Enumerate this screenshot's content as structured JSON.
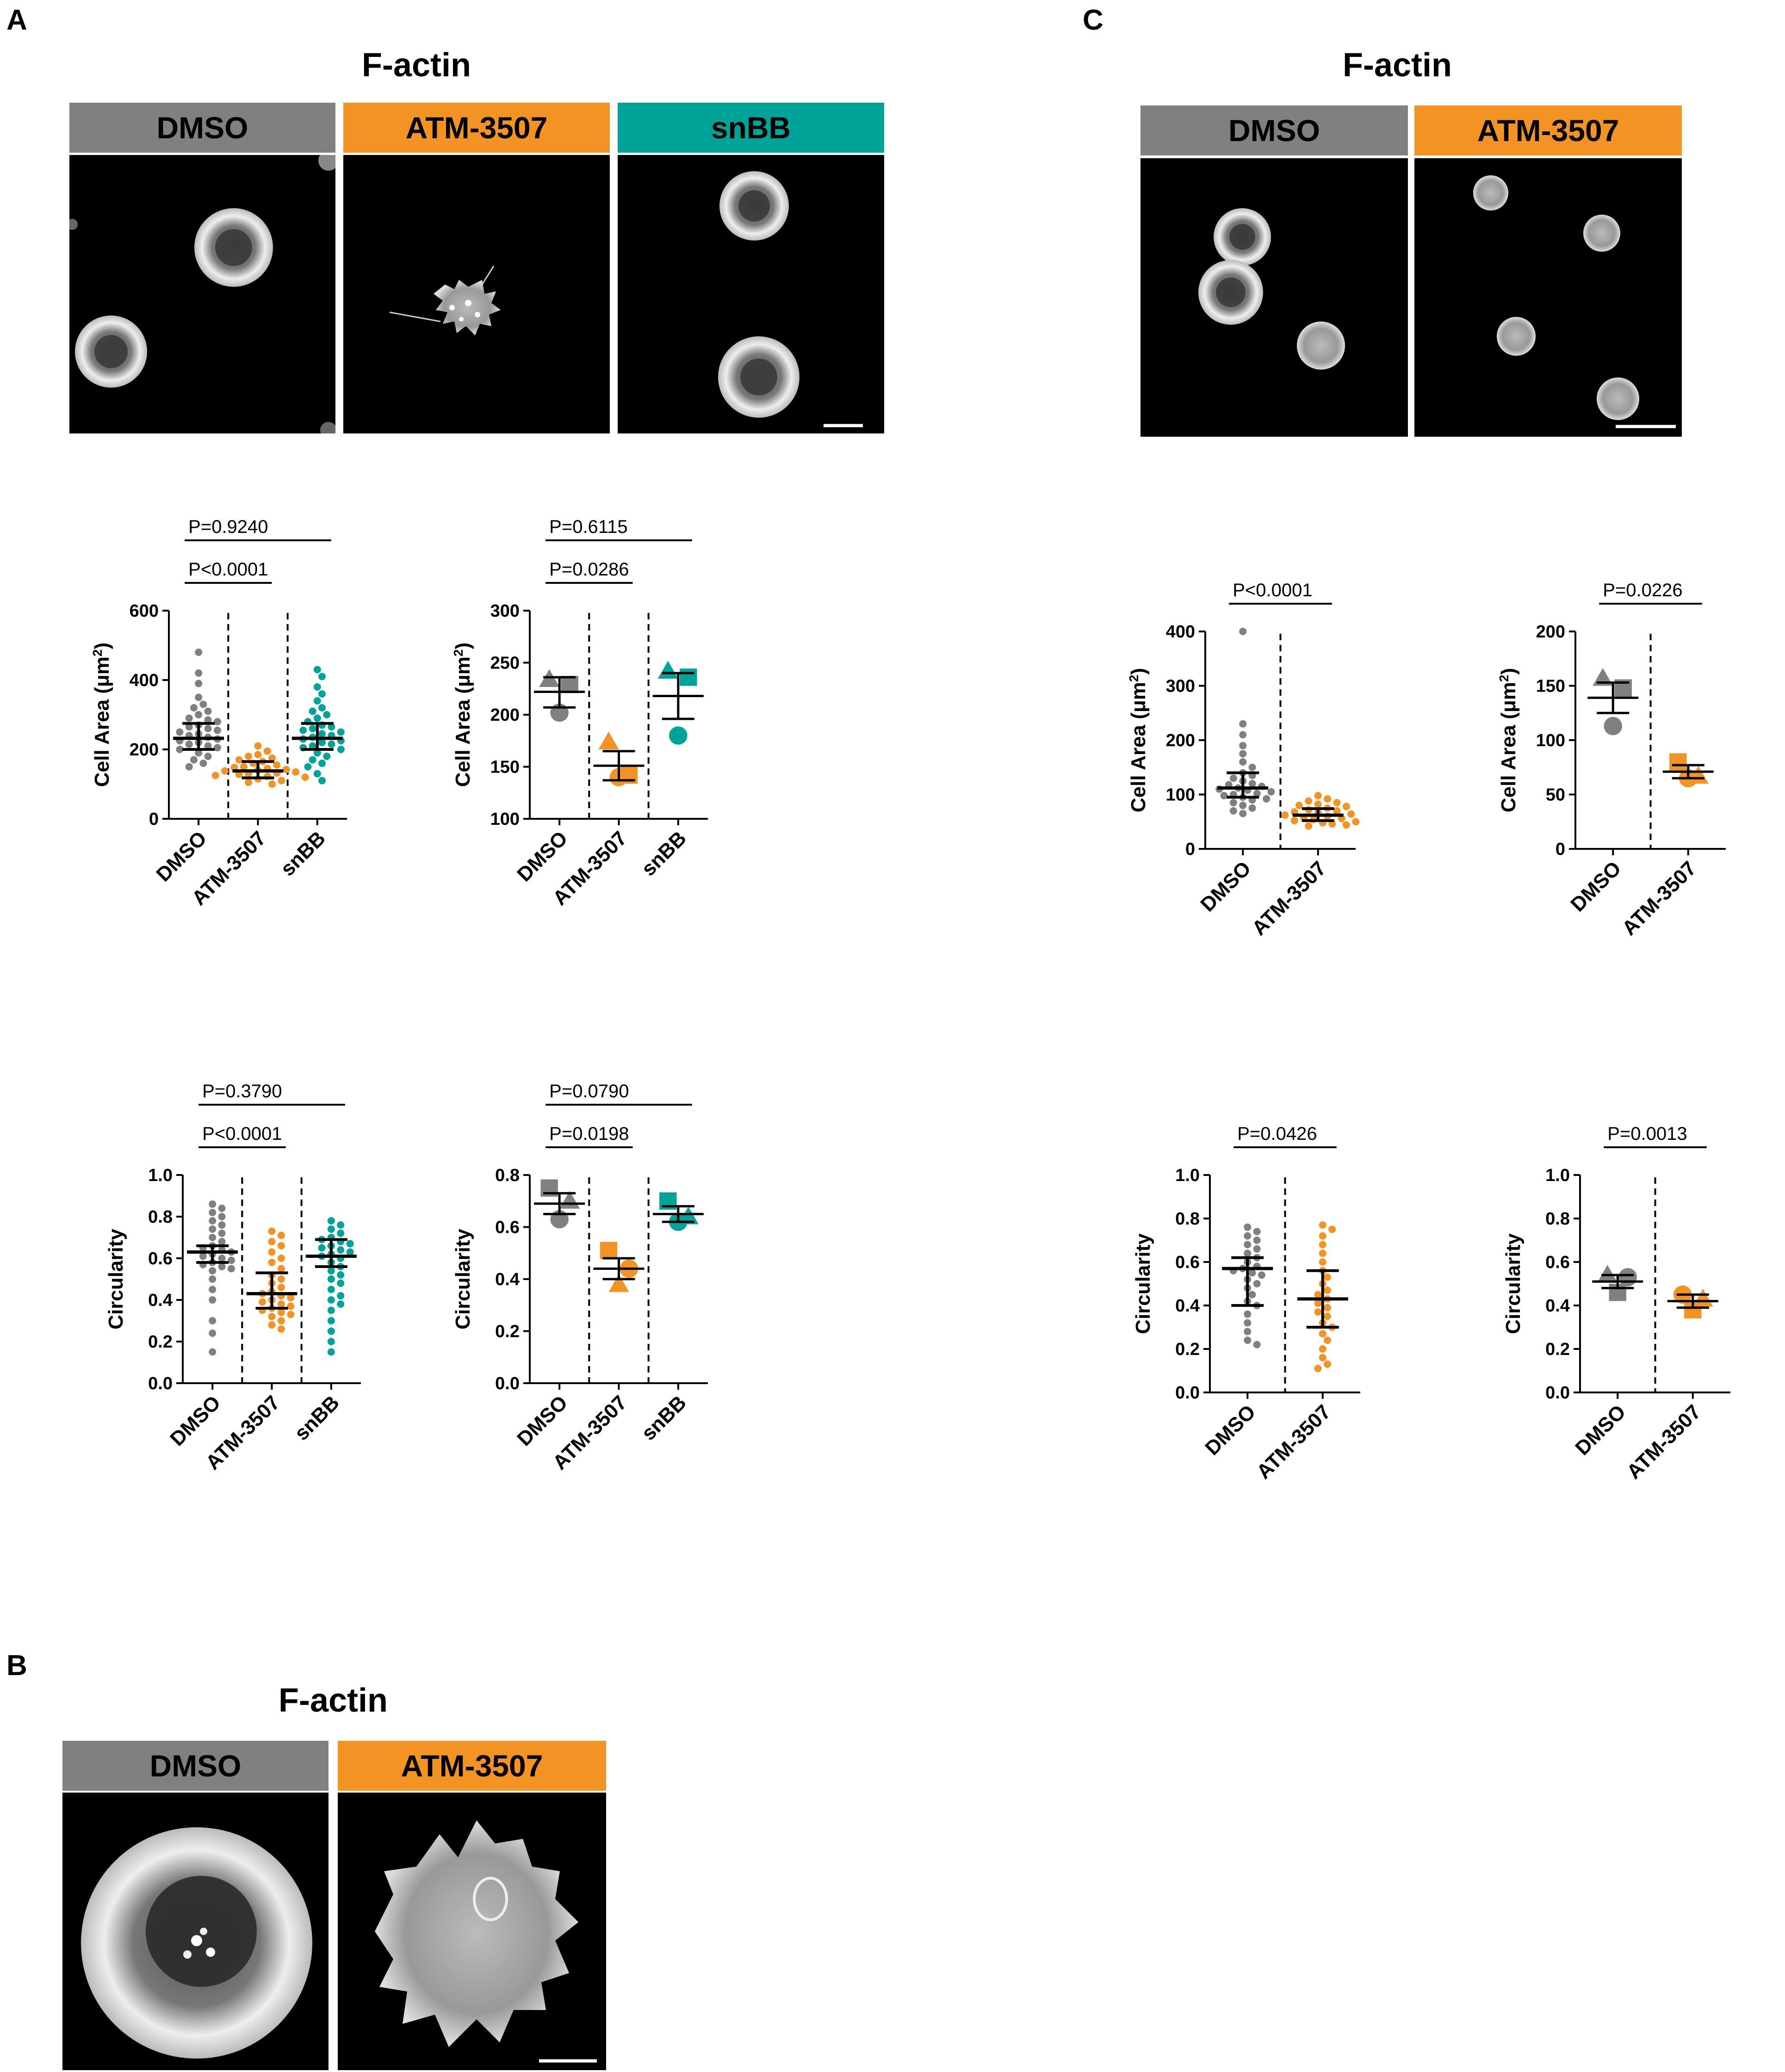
{
  "colors": {
    "dmso": "#808080",
    "atm": "#f39323",
    "snbb": "#00a398"
  },
  "panels": {
    "A": {
      "letter": "A",
      "title": "F-actin",
      "headers": [
        "DMSO",
        "ATM-3507",
        "snBB"
      ]
    },
    "B": {
      "letter": "B",
      "title": "F-actin",
      "headers": [
        "DMSO",
        "ATM-3507"
      ]
    },
    "C": {
      "letter": "C",
      "title": "F-actin",
      "headers": [
        "DMSO",
        "ATM-3507"
      ]
    }
  },
  "chart_data": [
    {
      "id": "A-area-cells",
      "type": "scatter",
      "ylabel": "Cell Area (μm2)",
      "ylim": [
        0,
        600
      ],
      "yticks": [
        0,
        200,
        400,
        600
      ],
      "categories": [
        "DMSO",
        "ATM-3507",
        "snBB"
      ],
      "comparisons": [
        {
          "label": "P=0.9240",
          "from": 0,
          "to": 2
        },
        {
          "label": "P<0.0001",
          "from": 0,
          "to": 1
        }
      ],
      "groups": [
        {
          "values": [
            480,
            420,
            390,
            350,
            330,
            320,
            310,
            300,
            290,
            285,
            280,
            270,
            265,
            260,
            255,
            250,
            245,
            240,
            235,
            230,
            225,
            220,
            215,
            210,
            205,
            200,
            190,
            180,
            170,
            160,
            150
          ],
          "median": 232,
          "q1": 200,
          "q3": 275
        },
        {
          "values": [
            210,
            195,
            185,
            180,
            175,
            170,
            165,
            160,
            155,
            150,
            148,
            145,
            142,
            140,
            138,
            135,
            132,
            130,
            128,
            125,
            122,
            120,
            115,
            110,
            105,
            100
          ],
          "median": 138,
          "q1": 118,
          "q3": 165
        },
        {
          "values": [
            430,
            410,
            380,
            360,
            340,
            320,
            310,
            300,
            290,
            280,
            270,
            265,
            260,
            255,
            250,
            245,
            240,
            235,
            230,
            225,
            220,
            215,
            210,
            205,
            200,
            190,
            180,
            170,
            160,
            150,
            130,
            110
          ],
          "median": 232,
          "q1": 200,
          "q3": 275
        }
      ]
    },
    {
      "id": "A-area-means",
      "type": "scatter",
      "ylabel": "Cell Area (μm2)",
      "ylim": [
        100,
        300
      ],
      "yticks": [
        100,
        150,
        200,
        250,
        300
      ],
      "categories": [
        "DMSO",
        "ATM-3507",
        "snBB"
      ],
      "comparisons": [
        {
          "label": "P=0.6115",
          "from": 0,
          "to": 2
        },
        {
          "label": "P=0.0286",
          "from": 0,
          "to": 1
        }
      ],
      "groups": [
        {
          "points": [
            {
              "shape": "triangle",
              "value": 234
            },
            {
              "shape": "square",
              "value": 229
            },
            {
              "shape": "circle",
              "value": 202
            }
          ],
          "mean": 222,
          "lower": 207,
          "upper": 236
        },
        {
          "points": [
            {
              "shape": "triangle",
              "value": 174
            },
            {
              "shape": "square",
              "value": 142
            },
            {
              "shape": "circle",
              "value": 140
            }
          ],
          "mean": 151,
          "lower": 137,
          "upper": 165
        },
        {
          "points": [
            {
              "shape": "triangle",
              "value": 242
            },
            {
              "shape": "square",
              "value": 236
            },
            {
              "shape": "circle",
              "value": 180
            }
          ],
          "mean": 218,
          "lower": 196,
          "upper": 240
        }
      ]
    },
    {
      "id": "A-circ-cells",
      "type": "scatter",
      "ylabel": "Circularity",
      "ylim": [
        0,
        1
      ],
      "yticks": [
        0.0,
        0.2,
        0.4,
        0.6,
        0.8,
        1.0
      ],
      "ydecimals": 1,
      "categories": [
        "DMSO",
        "ATM-3507",
        "snBB"
      ],
      "comparisons": [
        {
          "label": "P=0.3790",
          "from": 0,
          "to": 2
        },
        {
          "label": "P<0.0001",
          "from": 0,
          "to": 1
        }
      ],
      "groups": [
        {
          "values": [
            0.86,
            0.84,
            0.82,
            0.8,
            0.78,
            0.76,
            0.74,
            0.72,
            0.7,
            0.68,
            0.66,
            0.65,
            0.64,
            0.63,
            0.62,
            0.61,
            0.6,
            0.59,
            0.58,
            0.57,
            0.56,
            0.55,
            0.54,
            0.5,
            0.45,
            0.4,
            0.3,
            0.24,
            0.15
          ],
          "median": 0.63,
          "q1": 0.58,
          "q3": 0.66
        },
        {
          "values": [
            0.73,
            0.71,
            0.68,
            0.66,
            0.63,
            0.6,
            0.58,
            0.55,
            0.52,
            0.5,
            0.48,
            0.46,
            0.44,
            0.43,
            0.42,
            0.41,
            0.4,
            0.39,
            0.38,
            0.37,
            0.36,
            0.35,
            0.34,
            0.33,
            0.32,
            0.3,
            0.28,
            0.26
          ],
          "median": 0.43,
          "q1": 0.36,
          "q3": 0.53
        },
        {
          "values": [
            0.78,
            0.76,
            0.74,
            0.72,
            0.7,
            0.69,
            0.68,
            0.67,
            0.66,
            0.65,
            0.64,
            0.63,
            0.62,
            0.61,
            0.6,
            0.58,
            0.56,
            0.54,
            0.52,
            0.5,
            0.48,
            0.45,
            0.42,
            0.4,
            0.38,
            0.35,
            0.3,
            0.25,
            0.2,
            0.15
          ],
          "median": 0.61,
          "q1": 0.56,
          "q3": 0.69
        }
      ]
    },
    {
      "id": "A-circ-means",
      "type": "scatter",
      "ylabel": "Circularity",
      "ylim": [
        0,
        0.8
      ],
      "yticks": [
        0.0,
        0.2,
        0.4,
        0.6,
        0.8
      ],
      "ydecimals": 1,
      "categories": [
        "DMSO",
        "ATM-3507",
        "snBB"
      ],
      "comparisons": [
        {
          "label": "P=0.0790",
          "from": 0,
          "to": 2
        },
        {
          "label": "P=0.0198",
          "from": 0,
          "to": 1
        }
      ],
      "groups": [
        {
          "points": [
            {
              "shape": "square",
              "value": 0.75
            },
            {
              "shape": "triangle",
              "value": 0.7
            },
            {
              "shape": "circle",
              "value": 0.63
            }
          ],
          "mean": 0.69,
          "lower": 0.65,
          "upper": 0.73
        },
        {
          "points": [
            {
              "shape": "square",
              "value": 0.51
            },
            {
              "shape": "circle",
              "value": 0.44
            },
            {
              "shape": "triangle",
              "value": 0.38
            }
          ],
          "mean": 0.44,
          "lower": 0.4,
          "upper": 0.48
        },
        {
          "points": [
            {
              "shape": "square",
              "value": 0.7
            },
            {
              "shape": "triangle",
              "value": 0.64
            },
            {
              "shape": "circle",
              "value": 0.62
            }
          ],
          "mean": 0.65,
          "lower": 0.62,
          "upper": 0.68
        }
      ]
    },
    {
      "id": "C-area-cells",
      "type": "scatter",
      "ylabel": "Cell Area (μm2)",
      "ylim": [
        0,
        400
      ],
      "yticks": [
        0,
        100,
        200,
        300,
        400
      ],
      "categories": [
        "DMSO",
        "ATM-3507"
      ],
      "comparisons": [
        {
          "label": "P<0.0001",
          "from": 0,
          "to": 1
        }
      ],
      "groups": [
        {
          "values": [
            400,
            230,
            210,
            190,
            175,
            160,
            150,
            140,
            135,
            130,
            125,
            120,
            118,
            115,
            112,
            110,
            108,
            105,
            102,
            100,
            98,
            95,
            92,
            90,
            85,
            80,
            75,
            70,
            65
          ],
          "median": 112,
          "q1": 95,
          "q3": 140
        },
        {
          "values": [
            98,
            92,
            88,
            85,
            82,
            80,
            78,
            75,
            72,
            70,
            68,
            66,
            64,
            62,
            60,
            58,
            56,
            54,
            52,
            50,
            48,
            46,
            44,
            42
          ],
          "median": 62,
          "q1": 52,
          "q3": 74
        }
      ]
    },
    {
      "id": "C-area-means",
      "type": "scatter",
      "ylabel": "Cell Area (μm2)",
      "ylim": [
        0,
        200
      ],
      "yticks": [
        0,
        50,
        100,
        150,
        200
      ],
      "categories": [
        "DMSO",
        "ATM-3507"
      ],
      "comparisons": [
        {
          "label": "P=0.0226",
          "from": 0,
          "to": 1
        }
      ],
      "groups": [
        {
          "points": [
            {
              "shape": "triangle",
              "value": 157
            },
            {
              "shape": "square",
              "value": 148
            },
            {
              "shape": "circle",
              "value": 113
            }
          ],
          "mean": 139,
          "lower": 125,
          "upper": 153
        },
        {
          "points": [
            {
              "shape": "square",
              "value": 80
            },
            {
              "shape": "triangle",
              "value": 67
            },
            {
              "shape": "circle",
              "value": 65
            }
          ],
          "mean": 71,
          "lower": 65,
          "upper": 77
        }
      ]
    },
    {
      "id": "C-circ-cells",
      "type": "scatter",
      "ylabel": "Circularity",
      "ylim": [
        0,
        1
      ],
      "yticks": [
        0.0,
        0.2,
        0.4,
        0.6,
        0.8,
        1.0
      ],
      "ydecimals": 1,
      "categories": [
        "DMSO",
        "ATM-3507"
      ],
      "comparisons": [
        {
          "label": "P=0.0426",
          "from": 0,
          "to": 1
        }
      ],
      "groups": [
        {
          "values": [
            0.76,
            0.74,
            0.72,
            0.7,
            0.68,
            0.66,
            0.64,
            0.62,
            0.6,
            0.58,
            0.57,
            0.56,
            0.55,
            0.54,
            0.52,
            0.5,
            0.48,
            0.45,
            0.42,
            0.4,
            0.36,
            0.32,
            0.28,
            0.24,
            0.22
          ],
          "median": 0.57,
          "q1": 0.4,
          "q3": 0.62
        },
        {
          "values": [
            0.77,
            0.75,
            0.72,
            0.68,
            0.64,
            0.6,
            0.56,
            0.53,
            0.5,
            0.47,
            0.45,
            0.43,
            0.41,
            0.39,
            0.37,
            0.35,
            0.32,
            0.3,
            0.27,
            0.24,
            0.2,
            0.16,
            0.13,
            0.11
          ],
          "median": 0.43,
          "q1": 0.3,
          "q3": 0.56
        }
      ]
    },
    {
      "id": "C-circ-means",
      "type": "scatter",
      "ylabel": "Circularity",
      "ylim": [
        0,
        1
      ],
      "yticks": [
        0.0,
        0.2,
        0.4,
        0.6,
        0.8,
        1.0
      ],
      "ydecimals": 1,
      "categories": [
        "DMSO",
        "ATM-3507"
      ],
      "comparisons": [
        {
          "label": "P=0.0013",
          "from": 0,
          "to": 1
        }
      ],
      "groups": [
        {
          "points": [
            {
              "shape": "triangle",
              "value": 0.54
            },
            {
              "shape": "circle",
              "value": 0.53
            },
            {
              "shape": "square",
              "value": 0.46
            }
          ],
          "mean": 0.51,
          "lower": 0.48,
          "upper": 0.54
        },
        {
          "points": [
            {
              "shape": "circle",
              "value": 0.45
            },
            {
              "shape": "triangle",
              "value": 0.43
            },
            {
              "shape": "square",
              "value": 0.38
            }
          ],
          "mean": 0.42,
          "lower": 0.39,
          "upper": 0.45
        }
      ]
    }
  ]
}
